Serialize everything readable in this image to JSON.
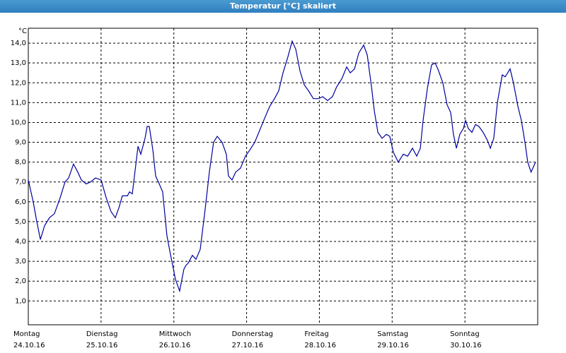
{
  "chart_data": {
    "type": "line",
    "title": "Temperatur [°C] skaliert",
    "y_unit": "°C",
    "color": "#0000a0",
    "grid": true,
    "xlim": [
      0,
      168
    ],
    "ylim": [
      -0.2,
      14.75
    ],
    "xticks": [
      {
        "value": 0,
        "label": "Montag"
      },
      {
        "value": 24,
        "label": "Dienstag"
      },
      {
        "value": 48,
        "label": "Mittwoch"
      },
      {
        "value": 72,
        "label": "Donnerstag"
      },
      {
        "value": 96,
        "label": "Freitag"
      },
      {
        "value": 120,
        "label": "Samstag"
      },
      {
        "value": 144,
        "label": "Sonntag"
      }
    ],
    "xtick_dates": [
      "24.10.16",
      "25.10.16",
      "26.10.16",
      "27.10.16",
      "28.10.16",
      "29.10.16",
      "30.10.16"
    ],
    "yticks": [
      {
        "value": 1,
        "label": "1,0"
      },
      {
        "value": 2,
        "label": "2,0"
      },
      {
        "value": 3,
        "label": "3,0"
      },
      {
        "value": 4,
        "label": "4,0"
      },
      {
        "value": 5,
        "label": "5,0"
      },
      {
        "value": 6,
        "label": "6,0"
      },
      {
        "value": 7,
        "label": "7,0"
      },
      {
        "value": 8,
        "label": "8,0"
      },
      {
        "value": 9,
        "label": "9,0"
      },
      {
        "value": 10,
        "label": "10,0"
      },
      {
        "value": 11,
        "label": "11,0"
      },
      {
        "value": 12,
        "label": "12,0"
      },
      {
        "value": 13,
        "label": "13,0"
      },
      {
        "value": 14,
        "label": "14,0"
      }
    ],
    "x": [
      0,
      1.6,
      2.8,
      4.0,
      5.4,
      7.0,
      8.6,
      10.5,
      12.1,
      13.3,
      14.9,
      16.3,
      17.5,
      19.1,
      20.5,
      22.2,
      24.0,
      25.7,
      27.3,
      28.7,
      29.9,
      31.0,
      32.7,
      33.4,
      34.3,
      36.2,
      37.1,
      38.5,
      39.2,
      39.9,
      41.1,
      42.0,
      43.2,
      44.3,
      45.7,
      46.7,
      48.5,
      49.9,
      51.3,
      52.0,
      52.7,
      54.1,
      55.3,
      56.7,
      58.3,
      59.7,
      61.1,
      62.3,
      63.9,
      65.3,
      66.0,
      67.2,
      68.4,
      70.0,
      71.6,
      73.0,
      74.7,
      76.3,
      77.9,
      79.6,
      81.2,
      82.6,
      84.0,
      85.6,
      87.0,
      88.2,
      89.6,
      91.0,
      92.4,
      94.0,
      95.7,
      97.1,
      98.7,
      100.3,
      101.7,
      103.4,
      105.0,
      106.2,
      107.6,
      109.0,
      110.6,
      111.8,
      113.2,
      114.1,
      115.3,
      116.7,
      118.1,
      119.2,
      120.4,
      122.0,
      123.7,
      125.1,
      126.7,
      128.1,
      129.3,
      130.2,
      131.6,
      133.0,
      134.2,
      135.3,
      136.7,
      138.1,
      139.3,
      140.2,
      141.2,
      142.3,
      143.5,
      144.2,
      145.1,
      146.3,
      147.5,
      148.6,
      150.0,
      151.4,
      152.4,
      153.5,
      154.7,
      156.3,
      157.3,
      158.9,
      160.0,
      161.5,
      162.6,
      163.8,
      164.7,
      165.8,
      167.3
    ],
    "values": [
      7.1,
      6.0,
      5.0,
      4.1,
      4.8,
      5.2,
      5.4,
      6.2,
      7.0,
      7.2,
      7.9,
      7.5,
      7.1,
      6.9,
      7.0,
      7.2,
      7.1,
      6.2,
      5.5,
      5.2,
      5.7,
      6.3,
      6.3,
      6.5,
      6.4,
      8.8,
      8.4,
      9.2,
      9.8,
      9.8,
      8.6,
      7.3,
      6.9,
      6.5,
      4.3,
      3.5,
      2.1,
      1.5,
      2.6,
      2.8,
      2.9,
      3.3,
      3.1,
      3.6,
      5.6,
      7.5,
      9.0,
      9.3,
      9.0,
      8.4,
      7.3,
      7.1,
      7.5,
      7.7,
      8.3,
      8.6,
      9.0,
      9.6,
      10.2,
      10.8,
      11.2,
      11.6,
      12.5,
      13.3,
      14.1,
      13.7,
      12.6,
      11.9,
      11.6,
      11.2,
      11.2,
      11.3,
      11.1,
      11.3,
      11.8,
      12.2,
      12.8,
      12.5,
      12.7,
      13.5,
      13.9,
      13.4,
      11.8,
      10.6,
      9.5,
      9.2,
      9.4,
      9.3,
      8.5,
      8.0,
      8.4,
      8.3,
      8.7,
      8.3,
      8.7,
      10.1,
      11.7,
      12.9,
      13.0,
      12.6,
      12.0,
      10.9,
      10.5,
      9.4,
      8.7,
      9.4,
      9.7,
      10.1,
      9.7,
      9.5,
      9.9,
      9.8,
      9.5,
      9.1,
      8.7,
      9.2,
      11.0,
      12.4,
      12.3,
      12.7,
      12.0,
      10.8,
      10.1,
      9.0,
      8.0,
      7.5,
      8.0
    ]
  }
}
